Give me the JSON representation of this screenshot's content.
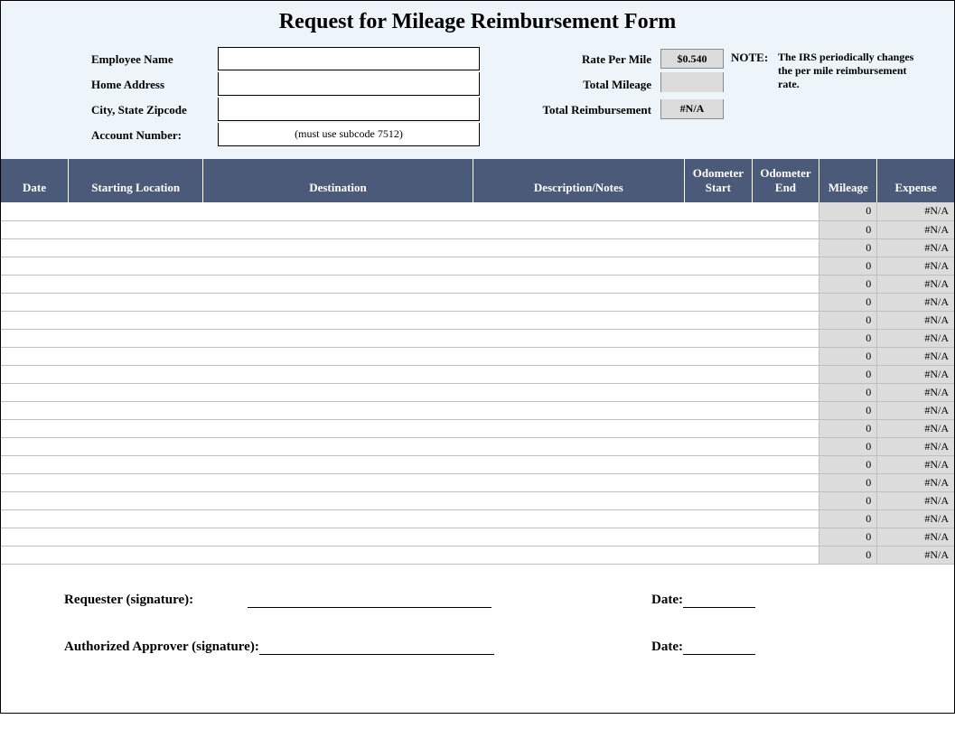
{
  "title": "Request for Mileage Reimbursement Form",
  "employee": {
    "name_label": "Employee Name",
    "address_label": "Home Address",
    "city_label": "City, State Zipcode",
    "account_label": "Account Number:",
    "account_hint": "(must use subcode 7512)"
  },
  "summary": {
    "rate_label": "Rate Per Mile",
    "rate_value": "$0.540",
    "total_mileage_label": "Total Mileage",
    "total_reimb_label": "Total Reimbursement",
    "total_reimb_value": "#N/A"
  },
  "note": {
    "head": "NOTE:",
    "body": "The IRS periodically changes the per mile reimbursement rate."
  },
  "columns": {
    "date": "Date",
    "start": "Starting Location",
    "dest": "Destination",
    "desc": "Description/Notes",
    "ostart": "Odometer Start",
    "oend": "Odometer End",
    "mileage": "Mileage",
    "expense": "Expense"
  },
  "rows": [
    {
      "mileage": "0",
      "expense": "#N/A"
    },
    {
      "mileage": "0",
      "expense": "#N/A"
    },
    {
      "mileage": "0",
      "expense": "#N/A"
    },
    {
      "mileage": "0",
      "expense": "#N/A"
    },
    {
      "mileage": "0",
      "expense": "#N/A"
    },
    {
      "mileage": "0",
      "expense": "#N/A"
    },
    {
      "mileage": "0",
      "expense": "#N/A"
    },
    {
      "mileage": "0",
      "expense": "#N/A"
    },
    {
      "mileage": "0",
      "expense": "#N/A"
    },
    {
      "mileage": "0",
      "expense": "#N/A"
    },
    {
      "mileage": "0",
      "expense": "#N/A"
    },
    {
      "mileage": "0",
      "expense": "#N/A"
    },
    {
      "mileage": "0",
      "expense": "#N/A"
    },
    {
      "mileage": "0",
      "expense": "#N/A"
    },
    {
      "mileage": "0",
      "expense": "#N/A"
    },
    {
      "mileage": "0",
      "expense": "#N/A"
    },
    {
      "mileage": "0",
      "expense": "#N/A"
    },
    {
      "mileage": "0",
      "expense": "#N/A"
    },
    {
      "mileage": "0",
      "expense": "#N/A"
    },
    {
      "mileage": "0",
      "expense": "#N/A"
    }
  ],
  "signatures": {
    "requester_label": "Requester (signature):",
    "approver_label": "Authorized Approver (signature):",
    "date_label": "Date:"
  },
  "styling": {
    "header_bg": "#4a5a78",
    "top_bg": "#edf5fa",
    "calc_bg": "#dcdcdc",
    "grid_color": "#bfbfbf"
  }
}
